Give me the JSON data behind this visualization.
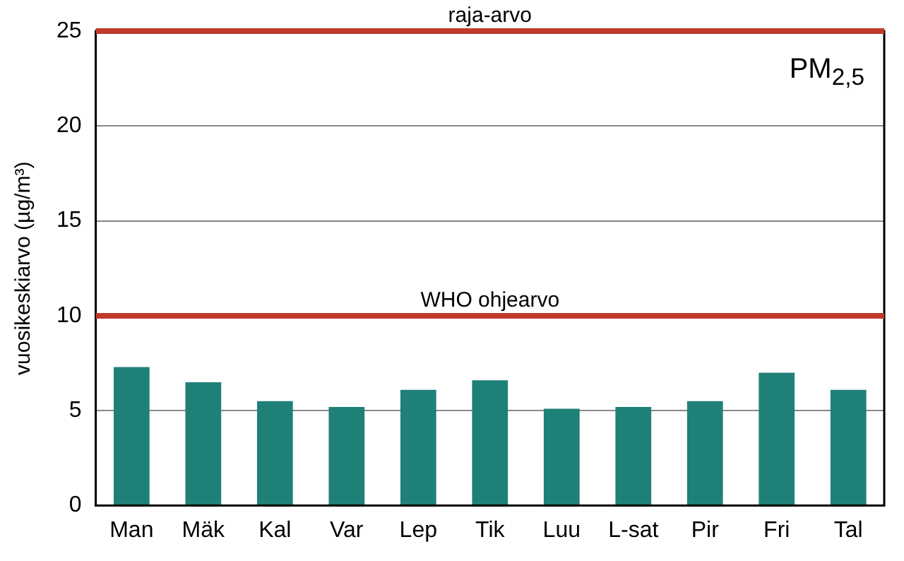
{
  "chart_data": {
    "type": "bar",
    "title": "PM$_{2,5}$",
    "ylabel": "vuosikeskiarvo (µg/m³)",
    "categories": [
      "Man",
      "Mäk",
      "Kal",
      "Var",
      "Lep",
      "Tik",
      "Luu",
      "L-sat",
      "Pir",
      "Fri",
      "Tal"
    ],
    "values": [
      7.3,
      6.5,
      5.5,
      5.2,
      6.1,
      6.6,
      5.1,
      5.2,
      5.5,
      7.0,
      6.1
    ],
    "color": "#1f8078",
    "ylim": [
      0,
      25
    ],
    "yticks": [
      0,
      5,
      10,
      15,
      20,
      25
    ],
    "grid": "y",
    "legend": false,
    "ref_lines": [
      {
        "axis": "y",
        "value": 10,
        "label": "WHO ohjearvo",
        "color": "#c0392b"
      },
      {
        "axis": "y",
        "value": 25,
        "label": "raja-arvo",
        "color": "#c0392b"
      }
    ]
  }
}
